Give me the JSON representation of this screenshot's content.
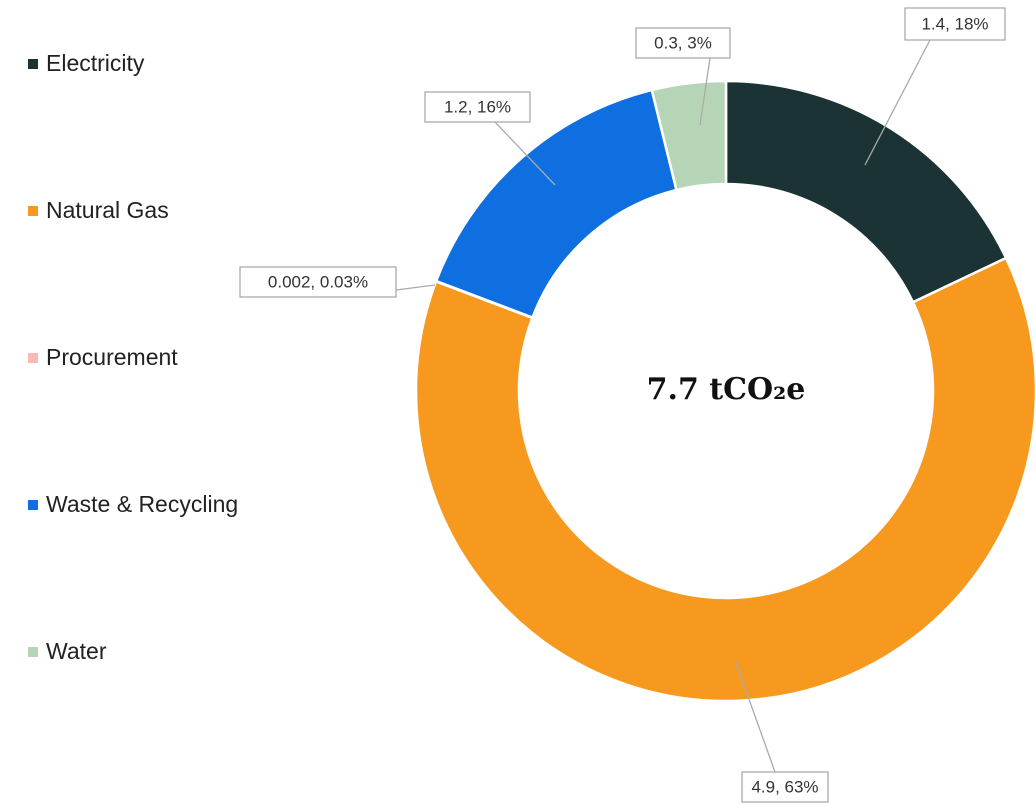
{
  "chart_data": {
    "type": "donut",
    "categories": [
      "Electricity",
      "Natural Gas",
      "Procurement",
      "Waste & Recycling",
      "Water"
    ],
    "values": [
      1.4,
      4.9,
      0.002,
      1.2,
      0.3
    ],
    "value_labels": [
      "1.4, 18%",
      "4.9, 63%",
      "0.002, 0.03%",
      "1.2, 16%",
      "0.3, 3%"
    ],
    "colors": [
      "#1b3335",
      "#f7991f",
      "#f9b9b4",
      "#0f6fe0",
      "#b6d5b7"
    ],
    "center_label": "7.7 tCO₂e",
    "legend": "left"
  }
}
